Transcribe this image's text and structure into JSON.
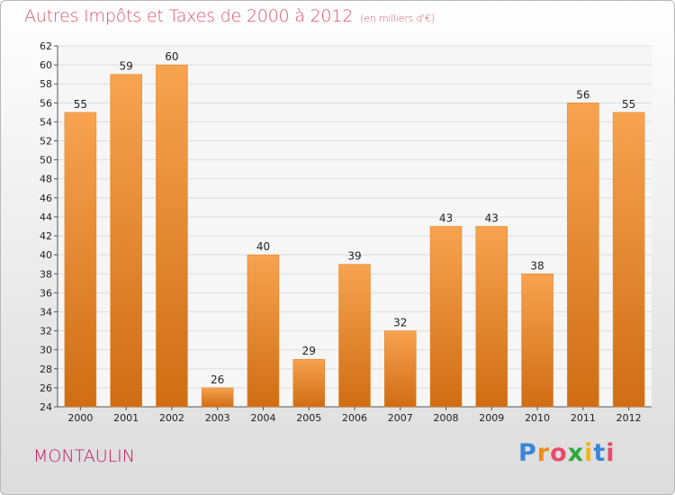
{
  "chart_data": {
    "type": "bar",
    "title": "Autres Impôts et Taxes de 2000 à 2012",
    "subtitle": "(en milliers d'€)",
    "categories": [
      "2000",
      "2001",
      "2002",
      "2003",
      "2004",
      "2005",
      "2006",
      "2007",
      "2008",
      "2009",
      "2010",
      "2011",
      "2012"
    ],
    "values": [
      55,
      59,
      60,
      26,
      40,
      29,
      39,
      32,
      43,
      43,
      38,
      56,
      55
    ],
    "ylim": [
      24,
      62
    ],
    "ytick_step": 2,
    "grid": true,
    "bar_color": "#f28f2c"
  },
  "footer": {
    "city": "MONTAULIN",
    "logo": [
      "P",
      "r",
      "o",
      "x",
      "i",
      "t",
      "i"
    ],
    "logo_colors": [
      "#3a86d8",
      "#f08c1a",
      "#e84a6a",
      "#2eaa3c",
      "#f0b51a",
      "#3a86d8",
      "#e84a6a"
    ]
  }
}
